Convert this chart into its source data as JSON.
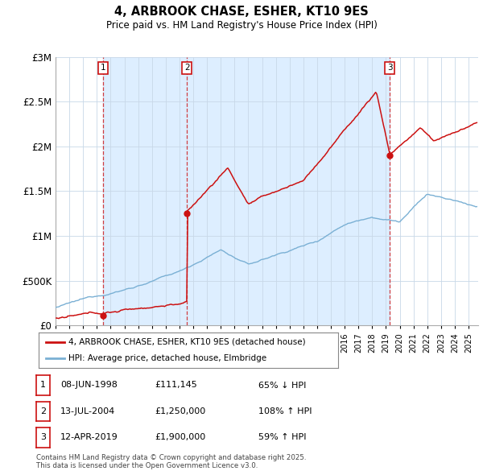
{
  "title": "4, ARBROOK CHASE, ESHER, KT10 9ES",
  "subtitle": "Price paid vs. HM Land Registry's House Price Index (HPI)",
  "sale_year_vals": [
    1998.44,
    2004.54,
    2019.28
  ],
  "sale_prices": [
    111145,
    1250000,
    1900000
  ],
  "sale_labels": [
    "1",
    "2",
    "3"
  ],
  "legend_house": "4, ARBROOK CHASE, ESHER, KT10 9ES (detached house)",
  "legend_hpi": "HPI: Average price, detached house, Elmbridge",
  "table_rows": [
    {
      "num": "1",
      "date": "08-JUN-1998",
      "price": "£111,145",
      "pct": "65% ↓ HPI"
    },
    {
      "num": "2",
      "date": "13-JUL-2004",
      "price": "£1,250,000",
      "pct": "108% ↑ HPI"
    },
    {
      "num": "3",
      "date": "12-APR-2019",
      "price": "£1,900,000",
      "pct": "59% ↑ HPI"
    }
  ],
  "footer": "Contains HM Land Registry data © Crown copyright and database right 2025.\nThis data is licensed under the Open Government Licence v3.0.",
  "house_color": "#cc1111",
  "hpi_color": "#7ab0d4",
  "shade_color": "#ddeeff",
  "ylim": [
    0,
    3000000
  ],
  "yticks": [
    0,
    500000,
    1000000,
    1500000,
    2000000,
    2500000,
    3000000
  ],
  "xlim_start": 1995.0,
  "xlim_end": 2025.7
}
